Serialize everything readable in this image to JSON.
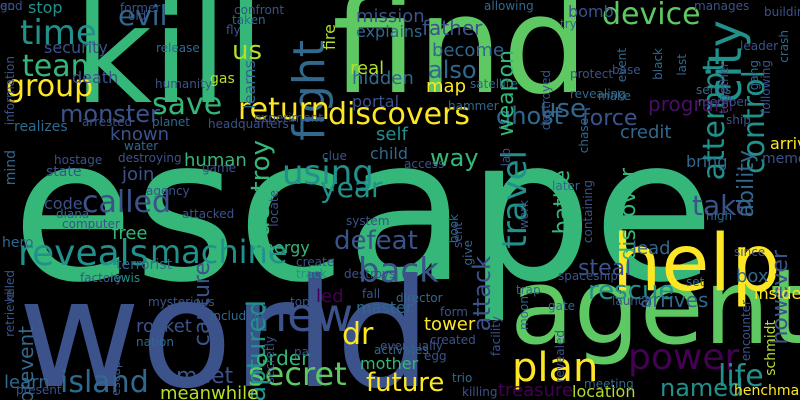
{
  "words": [
    {
      "text": "escape",
      "color": "#35b779"
    },
    {
      "text": "world",
      "color": "#3b528b"
    },
    {
      "text": "find",
      "color": "#5ec962"
    },
    {
      "text": "kill",
      "color": "#35b779"
    },
    {
      "text": "agent",
      "color": "#5ec962"
    },
    {
      "text": "help",
      "color": "#fde725"
    },
    {
      "text": "city",
      "color": "#21918c"
    },
    {
      "text": "plan",
      "color": "#fde725"
    },
    {
      "text": "power",
      "color": "#440154"
    },
    {
      "text": "secret",
      "color": "#5ec962"
    },
    {
      "text": "machine",
      "color": "#21918c"
    },
    {
      "text": "new",
      "color": "#3b528b"
    },
    {
      "text": "fight",
      "color": "#31688e"
    },
    {
      "text": "reveals",
      "color": "#21918c"
    },
    {
      "text": "team",
      "color": "#35b779"
    },
    {
      "text": "time",
      "color": "#21918c"
    },
    {
      "text": "group",
      "color": "#fde725"
    },
    {
      "text": "device",
      "color": "#5ec962"
    },
    {
      "text": "return",
      "color": "#fde725"
    },
    {
      "text": "discovers",
      "color": "#fde725"
    },
    {
      "text": "using",
      "color": "#21918c"
    },
    {
      "text": "called",
      "color": "#3b528b"
    },
    {
      "text": "destroy",
      "color": "#35b779"
    },
    {
      "text": "travel",
      "color": "#21918c"
    },
    {
      "text": "control",
      "color": "#21918c"
    },
    {
      "text": "attempt",
      "color": "#21918c"
    },
    {
      "text": "back",
      "color": "#3b528b"
    },
    {
      "text": "year",
      "color": "#21918c"
    },
    {
      "text": "us",
      "color": "#b5de2b"
    },
    {
      "text": "evil",
      "color": "#31688e"
    },
    {
      "text": "save",
      "color": "#35b779"
    },
    {
      "text": "island",
      "color": "#31688e"
    },
    {
      "text": "future",
      "color": "#fde725"
    },
    {
      "text": "dr",
      "color": "#fde725"
    },
    {
      "text": "defeat",
      "color": "#3b528b"
    },
    {
      "text": "captured",
      "color": "#21918c"
    },
    {
      "text": "take",
      "color": "#3b528b"
    },
    {
      "text": "life",
      "color": "#21918c"
    },
    {
      "text": "rescue",
      "color": "#21918c"
    },
    {
      "text": "ghost",
      "color": "#31688e"
    },
    {
      "text": "monster",
      "color": "#3b528b"
    },
    {
      "text": "also",
      "color": "#31688e"
    },
    {
      "text": "weapon",
      "color": "#35b779"
    },
    {
      "text": "force",
      "color": "#3b528b"
    },
    {
      "text": "use",
      "color": "#31688e"
    },
    {
      "text": "program",
      "color": "#471164"
    },
    {
      "text": "ability",
      "color": "#31688e"
    },
    {
      "text": "steal",
      "color": "#3b528b"
    },
    {
      "text": "battle",
      "color": "#35b779"
    },
    {
      "text": "discover",
      "color": "#35b779"
    },
    {
      "text": "attack",
      "color": "#3b528b"
    },
    {
      "text": "meet",
      "color": "#3b528b"
    },
    {
      "text": "named",
      "color": "#21918c"
    },
    {
      "text": "arrives",
      "color": "#31688e"
    },
    {
      "text": "capture",
      "color": "#3b528b"
    },
    {
      "text": "way",
      "color": "#35b779"
    },
    {
      "text": "however",
      "color": "#3b528b"
    },
    {
      "text": "meanwhile",
      "color": "#b5de2b"
    },
    {
      "text": "order",
      "color": "#35b779"
    },
    {
      "text": "learns",
      "color": "#31688e"
    },
    {
      "text": "hidden",
      "color": "#31688e"
    },
    {
      "text": "father",
      "color": "#3b528b"
    },
    {
      "text": "become",
      "color": "#31688e"
    },
    {
      "text": "map",
      "color": "#fde725"
    },
    {
      "text": "real",
      "color": "#b5de2b"
    },
    {
      "text": "self",
      "color": "#21918c"
    },
    {
      "text": "child",
      "color": "#31688e"
    },
    {
      "text": "credit",
      "color": "#31688e"
    },
    {
      "text": "known",
      "color": "#3b528b"
    },
    {
      "text": "human",
      "color": "#35b779"
    },
    {
      "text": "join",
      "color": "#3b528b"
    },
    {
      "text": "led",
      "color": "#440154"
    },
    {
      "text": "mother",
      "color": "#35b779"
    },
    {
      "text": "tower",
      "color": "#fde725"
    },
    {
      "text": "location",
      "color": "#b5de2b"
    },
    {
      "text": "treasure",
      "color": "#440154"
    },
    {
      "text": "box",
      "color": "#31688e"
    },
    {
      "text": "inside",
      "color": "#fde725"
    },
    {
      "text": "lead",
      "color": "#31688e"
    },
    {
      "text": "prevent",
      "color": "#31688e"
    },
    {
      "text": "learn",
      "color": "#31688e"
    },
    {
      "text": "rocket",
      "color": "#3b528b"
    },
    {
      "text": "free",
      "color": "#35b779"
    },
    {
      "text": "code",
      "color": "#3b528b"
    },
    {
      "text": "stop",
      "color": "#21918c"
    },
    {
      "text": "mission",
      "color": "#3b528b"
    },
    {
      "text": "fire",
      "color": "#b5de2b"
    },
    {
      "text": "security",
      "color": "#3b528b"
    },
    {
      "text": "death",
      "color": "#3b528b"
    },
    {
      "text": "portal",
      "color": "#3b528b"
    },
    {
      "text": "explains",
      "color": "#31688e"
    },
    {
      "text": "bring",
      "color": "#31688e"
    },
    {
      "text": "energy",
      "color": "#35b779"
    },
    {
      "text": "arrive",
      "color": "#fde725"
    },
    {
      "text": "memory",
      "color": "#3b528b"
    },
    {
      "text": "master",
      "color": "#31688e"
    },
    {
      "text": "track",
      "color": "#21918c"
    },
    {
      "text": "destroys",
      "color": "#3b528b"
    },
    {
      "text": "henchman",
      "color": "#fde725"
    },
    {
      "text": "schmidt",
      "color": "#b5de2b"
    },
    {
      "text": "terrorist",
      "color": "#31688e"
    },
    {
      "text": "factory",
      "color": "#3b528b"
    },
    {
      "text": "lewis",
      "color": "#21918c"
    },
    {
      "text": "hero",
      "color": "#31688e"
    },
    {
      "text": "mind",
      "color": "#31688e"
    },
    {
      "text": "state",
      "color": "#3b528b"
    },
    {
      "text": "realizes",
      "color": "#31688e"
    },
    {
      "text": "former",
      "color": "#3b528b"
    },
    {
      "text": "old",
      "color": "#3b528b"
    },
    {
      "text": "confront",
      "color": "#3b528b"
    },
    {
      "text": "taken",
      "color": "#31688e"
    },
    {
      "text": "fly",
      "color": "#3b528b"
    },
    {
      "text": "release",
      "color": "#31688e"
    },
    {
      "text": "humanity",
      "color": "#3b528b"
    },
    {
      "text": "gas",
      "color": "#b5de2b"
    },
    {
      "text": "bomb",
      "color": "#3b528b"
    },
    {
      "text": "allowing",
      "color": "#31688e"
    },
    {
      "text": "try",
      "color": "#31688e"
    },
    {
      "text": "manages",
      "color": "#3b528b"
    },
    {
      "text": "building",
      "color": "#3b528b"
    },
    {
      "text": "destroyed",
      "color": "#3b528b"
    },
    {
      "text": "event",
      "color": "#31688e"
    },
    {
      "text": "protect",
      "color": "#3b528b"
    },
    {
      "text": "revealing",
      "color": "#31688e"
    },
    {
      "text": "chase",
      "color": "#31688e"
    },
    {
      "text": "hammer",
      "color": "#31688e"
    },
    {
      "text": "satellite",
      "color": "#31688e"
    },
    {
      "text": "sends",
      "color": "#31688e"
    },
    {
      "text": "member",
      "color": "#3b528b"
    },
    {
      "text": "ship",
      "color": "#3b528b"
    },
    {
      "text": "last",
      "color": "#31688e"
    },
    {
      "text": "black",
      "color": "#31688e"
    },
    {
      "text": "crash",
      "color": "#31688e"
    },
    {
      "text": "planet",
      "color": "#31688e"
    },
    {
      "text": "headquarters",
      "color": "#3b528b"
    },
    {
      "text": "experiment",
      "color": "#3b528b"
    },
    {
      "text": "water",
      "color": "#31688e"
    },
    {
      "text": "destroying",
      "color": "#3b528b"
    },
    {
      "text": "agency",
      "color": "#3b528b"
    },
    {
      "text": "hostage",
      "color": "#3b528b"
    },
    {
      "text": "game",
      "color": "#3b528b"
    },
    {
      "text": "clue",
      "color": "#3b528b"
    },
    {
      "text": "access",
      "color": "#3b528b"
    },
    {
      "text": "later",
      "color": "#31688e"
    },
    {
      "text": "attacked",
      "color": "#3b528b"
    },
    {
      "text": "high",
      "color": "#31688e"
    },
    {
      "text": "system",
      "color": "#3b528b"
    },
    {
      "text": "computer",
      "color": "#3b528b"
    },
    {
      "text": "diana",
      "color": "#31688e"
    },
    {
      "text": "create",
      "color": "#3b528b"
    },
    {
      "text": "fall",
      "color": "#3b528b"
    },
    {
      "text": "director",
      "color": "#31688e"
    },
    {
      "text": "top",
      "color": "#3b528b"
    },
    {
      "text": "trap",
      "color": "#31688e"
    },
    {
      "text": "moon",
      "color": "#31688e"
    },
    {
      "text": "gate",
      "color": "#31688e"
    },
    {
      "text": "launch",
      "color": "#3b528b"
    },
    {
      "text": "mysterious",
      "color": "#3b528b"
    },
    {
      "text": "including",
      "color": "#31688e"
    },
    {
      "text": "past",
      "color": "#3b528b"
    },
    {
      "text": "created",
      "color": "#3b528b"
    },
    {
      "text": "activates",
      "color": "#31688e"
    },
    {
      "text": "nation",
      "color": "#31688e"
    },
    {
      "text": "form",
      "color": "#3b528b"
    },
    {
      "text": "egg",
      "color": "#3b528b"
    },
    {
      "text": "trio",
      "color": "#31688e"
    },
    {
      "text": "killing",
      "color": "#3b528b"
    },
    {
      "text": "meeting",
      "color": "#31688e"
    },
    {
      "text": "set",
      "color": "#31688e"
    },
    {
      "text": "since",
      "color": "#3b528b"
    },
    {
      "text": "encounter",
      "color": "#3b528b"
    },
    {
      "text": "present",
      "color": "#3b528b"
    },
    {
      "text": "escaping",
      "color": "#3b528b"
    },
    {
      "text": "facility",
      "color": "#3b528b"
    },
    {
      "text": "revealed",
      "color": "#3b528b"
    },
    {
      "text": "secretly",
      "color": "#3b528b"
    },
    {
      "text": "eventually",
      "color": "#3b528b"
    },
    {
      "text": "base",
      "color": "#3b528b"
    },
    {
      "text": "make",
      "color": "#31688e"
    },
    {
      "text": "lab",
      "color": "#3b528b"
    },
    {
      "text": "book",
      "color": "#31688e"
    },
    {
      "text": "give",
      "color": "#31688e"
    },
    {
      "text": "sent",
      "color": "#3b528b"
    },
    {
      "text": "work",
      "color": "#3b528b"
    },
    {
      "text": "locate",
      "color": "#3b528b"
    },
    {
      "text": "arrested",
      "color": "#3b528b"
    },
    {
      "text": "information",
      "color": "#3b528b"
    },
    {
      "text": "killed",
      "color": "#3b528b"
    },
    {
      "text": "retrieve",
      "color": "#3b528b"
    },
    {
      "text": "together",
      "color": "#3b528b"
    },
    {
      "text": "gang",
      "color": "#31688e"
    },
    {
      "text": "following",
      "color": "#3b528b"
    },
    {
      "text": "containing",
      "color": "#3b528b"
    },
    {
      "text": "leader",
      "color": "#3b528b"
    },
    {
      "text": "spaceship",
      "color": "#3b528b"
    },
    {
      "text": "end",
      "color": "#3b528b"
    },
    {
      "text": "go",
      "color": "#3b528b"
    }
  ]
}
